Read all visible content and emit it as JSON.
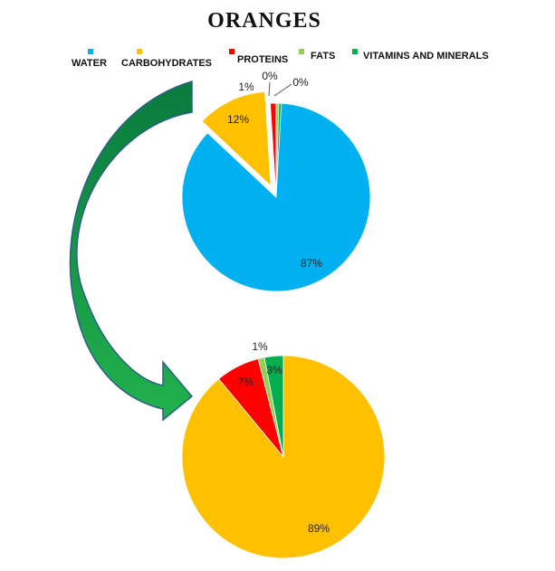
{
  "title": "ORANGES",
  "legend": [
    {
      "label": "WATER",
      "color": "#00b0f0"
    },
    {
      "label": "CARBOHYDRATES",
      "color": "#ffc000"
    },
    {
      "label": "PROTEINS",
      "color": "#ff0000"
    },
    {
      "label": "FATS",
      "color": "#92d050"
    },
    {
      "label": "VITAMINS AND MINERALS",
      "color": "#00b050"
    }
  ],
  "chart_data": [
    {
      "type": "pie",
      "title": "",
      "categories": [
        "WATER",
        "CARBOHYDRATES",
        "PROTEINS",
        "FATS",
        "VITAMINS AND MINERALS"
      ],
      "values": [
        87,
        12,
        1,
        0,
        0
      ],
      "labels": [
        "87%",
        "12%",
        "1%",
        "0%",
        "0%"
      ],
      "colors": [
        "#00b0f0",
        "#ffc000",
        "#ff0000",
        "#92d050",
        "#00b050"
      ],
      "exploded_slice": "CARBOHYDRATES"
    },
    {
      "type": "pie",
      "title": "",
      "categories": [
        "CARBOHYDRATES",
        "PROTEINS",
        "FATS",
        "VITAMINS AND MINERALS"
      ],
      "values": [
        89,
        7,
        1,
        3
      ],
      "labels": [
        "89%",
        "7%",
        "1%",
        "3%"
      ],
      "colors": [
        "#ffc000",
        "#ff0000",
        "#92d050",
        "#00b050"
      ]
    }
  ],
  "arrow_color": "#00a651"
}
